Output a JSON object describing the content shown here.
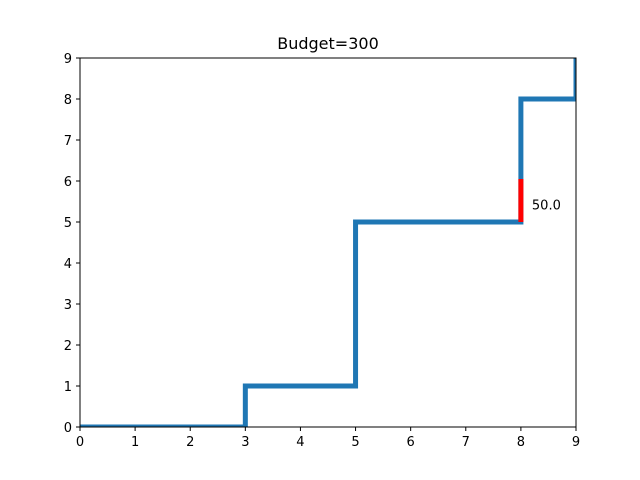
{
  "chart_data": {
    "type": "line",
    "title": "Budget=300",
    "xlabel": "",
    "ylabel": "",
    "xlim": [
      0,
      9
    ],
    "ylim": [
      0,
      9
    ],
    "xticks": [
      "0",
      "1",
      "2",
      "3",
      "4",
      "5",
      "6",
      "7",
      "8",
      "9"
    ],
    "yticks": [
      "0",
      "1",
      "2",
      "3",
      "4",
      "5",
      "6",
      "7",
      "8",
      "9"
    ],
    "grid": false,
    "series": [
      {
        "step": "post",
        "color": "#1f77b4",
        "x": [
          0,
          3,
          5,
          8,
          9
        ],
        "y": [
          0,
          1,
          5,
          8,
          9
        ]
      }
    ],
    "highlight": {
      "color": "#ff0000",
      "x": 8,
      "y_from": 5,
      "y_to": 6.05
    },
    "annotations": [
      {
        "text": "50.0",
        "x": 8.2,
        "y": 5.4
      }
    ]
  }
}
